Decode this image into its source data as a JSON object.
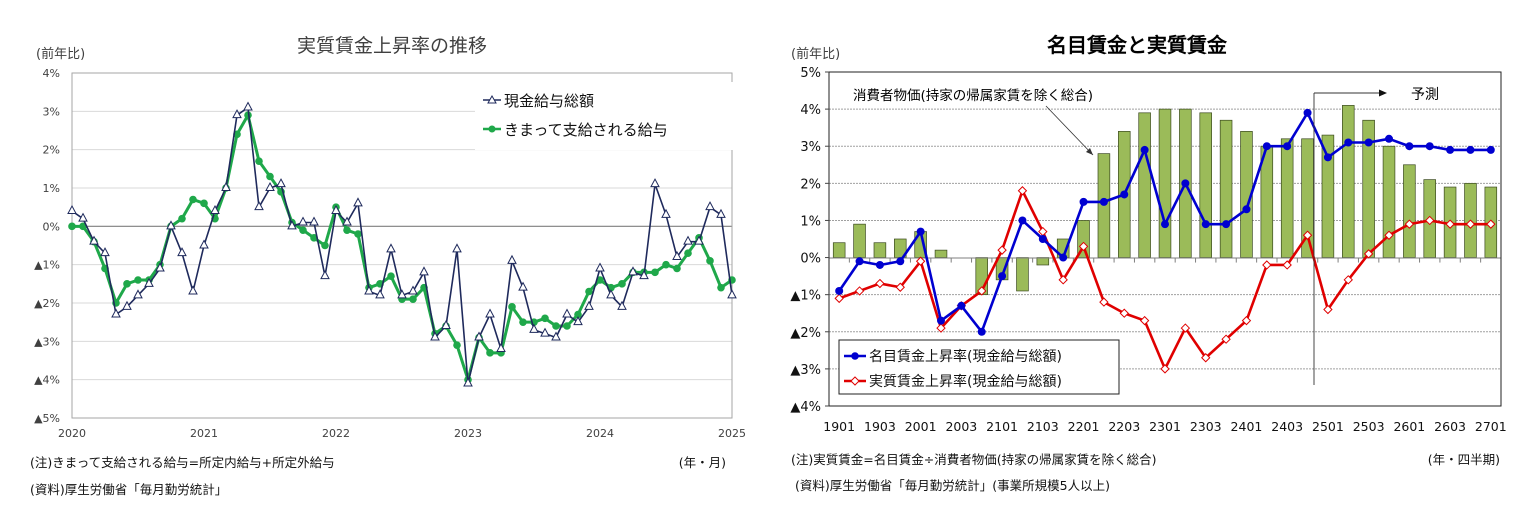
{
  "left": {
    "title": "実質賃金上昇率の推移",
    "unit_label": "(前年比)",
    "x_unit": "(年・月)",
    "note1": "(注)きまって支給される給与=所定内給与+所定外給与",
    "note2": "(資料)厚生労働省「毎月勤労統計」",
    "legend": [
      "現金給与総額",
      "きまって支給される給与"
    ]
  },
  "right": {
    "title": "名目賃金と実質賃金",
    "unit_label": "(前年比)",
    "x_unit": "(年・四半期)",
    "note1": "(注)実質賃金=名目賃金÷消費者物価(持家の帰属家賃を除く総合)",
    "note2": "(資料)厚生労働省「毎月勤労統計」(事業所規模5人以上)",
    "annotation_cpi": "消費者物価(持家の帰属家賃を除く総合)",
    "annotation_forecast": "予測",
    "legend": [
      "名目賃金上昇率(現金給与総額)",
      "実質賃金上昇率(現金給与総額)"
    ]
  },
  "chart_data": [
    {
      "type": "line",
      "title": "実質賃金上昇率の推移",
      "xlabel": "(年・月)",
      "ylabel": "(前年比)",
      "ylim": [
        -5,
        4
      ],
      "yticks": [
        "4%",
        "3%",
        "2%",
        "1%",
        "0%",
        "▲1%",
        "▲2%",
        "▲3%",
        "▲4%",
        "▲5%"
      ],
      "xticks": [
        "2020",
        "2021",
        "2022",
        "2023",
        "2024",
        "2025"
      ],
      "x_start": "2020-01",
      "x_freq": "monthly",
      "grid": true,
      "legend_position": "upper right",
      "series": [
        {
          "name": "現金給与総額",
          "color": "#1f2a5c",
          "marker": "triangle-open",
          "values": [
            0.4,
            0.2,
            -0.4,
            -0.7,
            -2.3,
            -2.1,
            -1.8,
            -1.5,
            -1.1,
            0.0,
            -0.7,
            -1.7,
            -0.5,
            0.4,
            1.0,
            2.9,
            3.1,
            0.5,
            1.0,
            1.1,
            0.0,
            0.1,
            0.1,
            -1.3,
            0.4,
            0.1,
            0.6,
            -1.7,
            -1.8,
            -0.6,
            -1.8,
            -1.7,
            -1.2,
            -2.9,
            -2.6,
            -0.6,
            -4.1,
            -2.9,
            -2.3,
            -3.2,
            -0.9,
            -1.6,
            -2.7,
            -2.8,
            -2.9,
            -2.3,
            -2.5,
            -2.1,
            -1.1,
            -1.8,
            -2.1,
            -1.2,
            -1.3,
            1.1,
            0.3,
            -0.8,
            -0.4,
            -0.4,
            0.5,
            0.3,
            -1.8
          ]
        },
        {
          "name": "きまって支給される給与",
          "color": "#1fa84a",
          "marker": "circle-filled",
          "values": [
            0.0,
            0.0,
            -0.4,
            -1.1,
            -2.0,
            -1.5,
            -1.4,
            -1.4,
            -1.0,
            0.0,
            0.2,
            0.7,
            0.6,
            0.2,
            1.0,
            2.4,
            2.9,
            1.7,
            1.3,
            0.9,
            0.1,
            -0.1,
            -0.3,
            -0.5,
            0.5,
            -0.1,
            -0.2,
            -1.6,
            -1.5,
            -1.3,
            -1.9,
            -1.9,
            -1.6,
            -2.8,
            -2.6,
            -3.1,
            -4.0,
            -2.9,
            -3.3,
            -3.3,
            -2.1,
            -2.5,
            -2.5,
            -2.4,
            -2.6,
            -2.6,
            -2.3,
            -1.7,
            -1.4,
            -1.6,
            -1.5,
            -1.2,
            -1.2,
            -1.2,
            -1.0,
            -1.1,
            -0.7,
            -0.3,
            -0.9,
            -1.6,
            -1.4
          ]
        }
      ]
    },
    {
      "type": "bar+line",
      "title": "名目賃金と実質賃金",
      "xlabel": "(年・四半期)",
      "ylabel": "(前年比)",
      "ylim": [
        -4,
        5
      ],
      "yticks": [
        "5%",
        "4%",
        "3%",
        "2%",
        "1%",
        "0%",
        "▲1%",
        "▲2%",
        "▲3%",
        "▲4%"
      ],
      "categories": [
        "1901",
        "1902",
        "1903",
        "1904",
        "2001",
        "2002",
        "2003",
        "2004",
        "2101",
        "2102",
        "2103",
        "2104",
        "2201",
        "2202",
        "2203",
        "2204",
        "2301",
        "2302",
        "2303",
        "2304",
        "2401",
        "2402",
        "2403",
        "2404",
        "2501",
        "2502",
        "2503",
        "2504",
        "2601",
        "2602",
        "2603",
        "2604",
        "2701"
      ],
      "xticks": [
        "1901",
        "1903",
        "2001",
        "2003",
        "2101",
        "2103",
        "2201",
        "2203",
        "2301",
        "2303",
        "2401",
        "2403",
        "2501",
        "2503",
        "2601",
        "2603",
        "2701"
      ],
      "forecast_from": "2501",
      "grid": true,
      "legend_position": "lower left",
      "series": [
        {
          "name": "消費者物価(持家の帰属家賃を除く総合)",
          "type": "bar",
          "color": "#9bbb59",
          "values": [
            0.4,
            0.9,
            0.4,
            0.5,
            0.7,
            0.2,
            0.0,
            -1.0,
            -0.6,
            -0.9,
            -0.2,
            0.5,
            1.0,
            2.8,
            3.4,
            3.9,
            4.0,
            4.0,
            3.9,
            3.7,
            3.4,
            3.0,
            3.2,
            3.2,
            3.3,
            4.1,
            3.7,
            3.0,
            2.5,
            2.1,
            1.9,
            2.0,
            1.9
          ]
        },
        {
          "name": "名目賃金上昇率(現金給与総額)",
          "type": "line",
          "color": "#0000d0",
          "marker": "circle-filled",
          "values": [
            -0.9,
            -0.1,
            -0.2,
            -0.1,
            0.7,
            -1.7,
            -1.3,
            -2.0,
            -0.5,
            1.0,
            0.5,
            0.0,
            1.5,
            1.5,
            1.7,
            2.9,
            0.9,
            2.0,
            0.9,
            0.9,
            1.3,
            3.0,
            3.0,
            3.9,
            2.7,
            3.1,
            3.1,
            3.2,
            3.0,
            3.0,
            2.9,
            2.9,
            2.9
          ]
        },
        {
          "name": "実質賃金上昇率(現金給与総額)",
          "type": "line",
          "color": "#e00000",
          "marker": "diamond-open",
          "values": [
            -1.1,
            -0.9,
            -0.7,
            -0.8,
            -0.1,
            -1.9,
            -1.3,
            -0.9,
            0.2,
            1.8,
            0.7,
            -0.6,
            0.3,
            -1.2,
            -1.5,
            -1.7,
            -3.0,
            -1.9,
            -2.7,
            -2.2,
            -1.7,
            -0.2,
            -0.2,
            0.6,
            -1.4,
            -0.6,
            0.1,
            0.6,
            0.9,
            1.0,
            0.9,
            0.9,
            0.9
          ]
        }
      ]
    }
  ]
}
